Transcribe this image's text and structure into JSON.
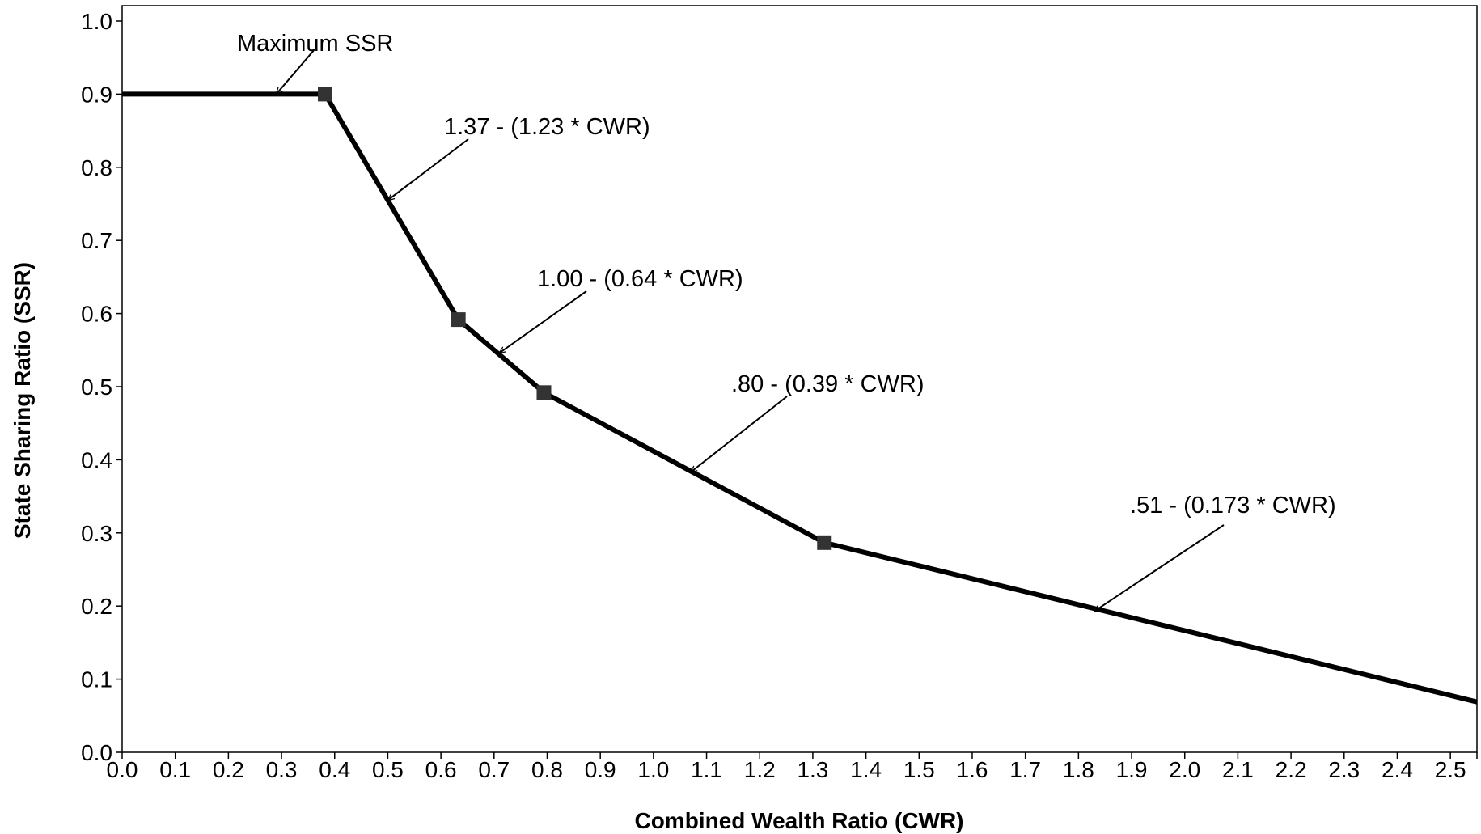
{
  "chart_data": {
    "type": "line",
    "title": "",
    "xlabel": "Combined Wealth Ratio (CWR)",
    "ylabel": "State Sharing Ratio (SSR)",
    "xlim": [
      0.0,
      2.55
    ],
    "ylim": [
      0.0,
      1.0
    ],
    "x_ticks": [
      "0.0",
      "0.1",
      "0.2",
      "0.3",
      "0.4",
      "0.5",
      "0.6",
      "0.7",
      "0.8",
      "0.9",
      "1.0",
      "1.1",
      "1.2",
      "1.3",
      "1.4",
      "1.5",
      "1.6",
      "1.7",
      "1.8",
      "1.9",
      "2.0",
      "2.1",
      "2.2",
      "2.3",
      "2.4",
      "2.5"
    ],
    "y_ticks": [
      "0.0",
      "0.1",
      "0.2",
      "0.3",
      "0.4",
      "0.5",
      "0.6",
      "0.7",
      "0.8",
      "0.9",
      "1.0"
    ],
    "grid": false,
    "legend": "none",
    "line_color": "#000000",
    "marker_color": "#333333",
    "series": [
      {
        "x": [
          0.0,
          0.3821,
          0.6328,
          0.7939,
          1.3218,
          2.55
        ],
        "y": [
          0.9,
          0.9,
          0.5917,
          0.4919,
          0.2867,
          0.0689
        ]
      }
    ],
    "breakpoints": [
      {
        "x": 0.3821,
        "y": 0.9
      },
      {
        "x": 0.6328,
        "y": 0.5917
      },
      {
        "x": 0.7939,
        "y": 0.4919
      },
      {
        "x": 1.3218,
        "y": 0.2867
      }
    ],
    "annotations": [
      {
        "text": "Maximum SSR",
        "point": {
          "x": 0.29,
          "y": 0.9
        }
      },
      {
        "text": "1.37 - (1.23 * CWR)",
        "point": {
          "x": 0.5,
          "y": 0.755
        }
      },
      {
        "text": "1.00 - (0.64 * CWR)",
        "point": {
          "x": 0.71,
          "y": 0.546
        }
      },
      {
        "text": ".80 - (0.39 * CWR)",
        "point": {
          "x": 1.07,
          "y": 0.383
        }
      },
      {
        "text": ".51 - (0.173 * CWR)",
        "point": {
          "x": 1.83,
          "y": 0.193
        }
      }
    ]
  }
}
